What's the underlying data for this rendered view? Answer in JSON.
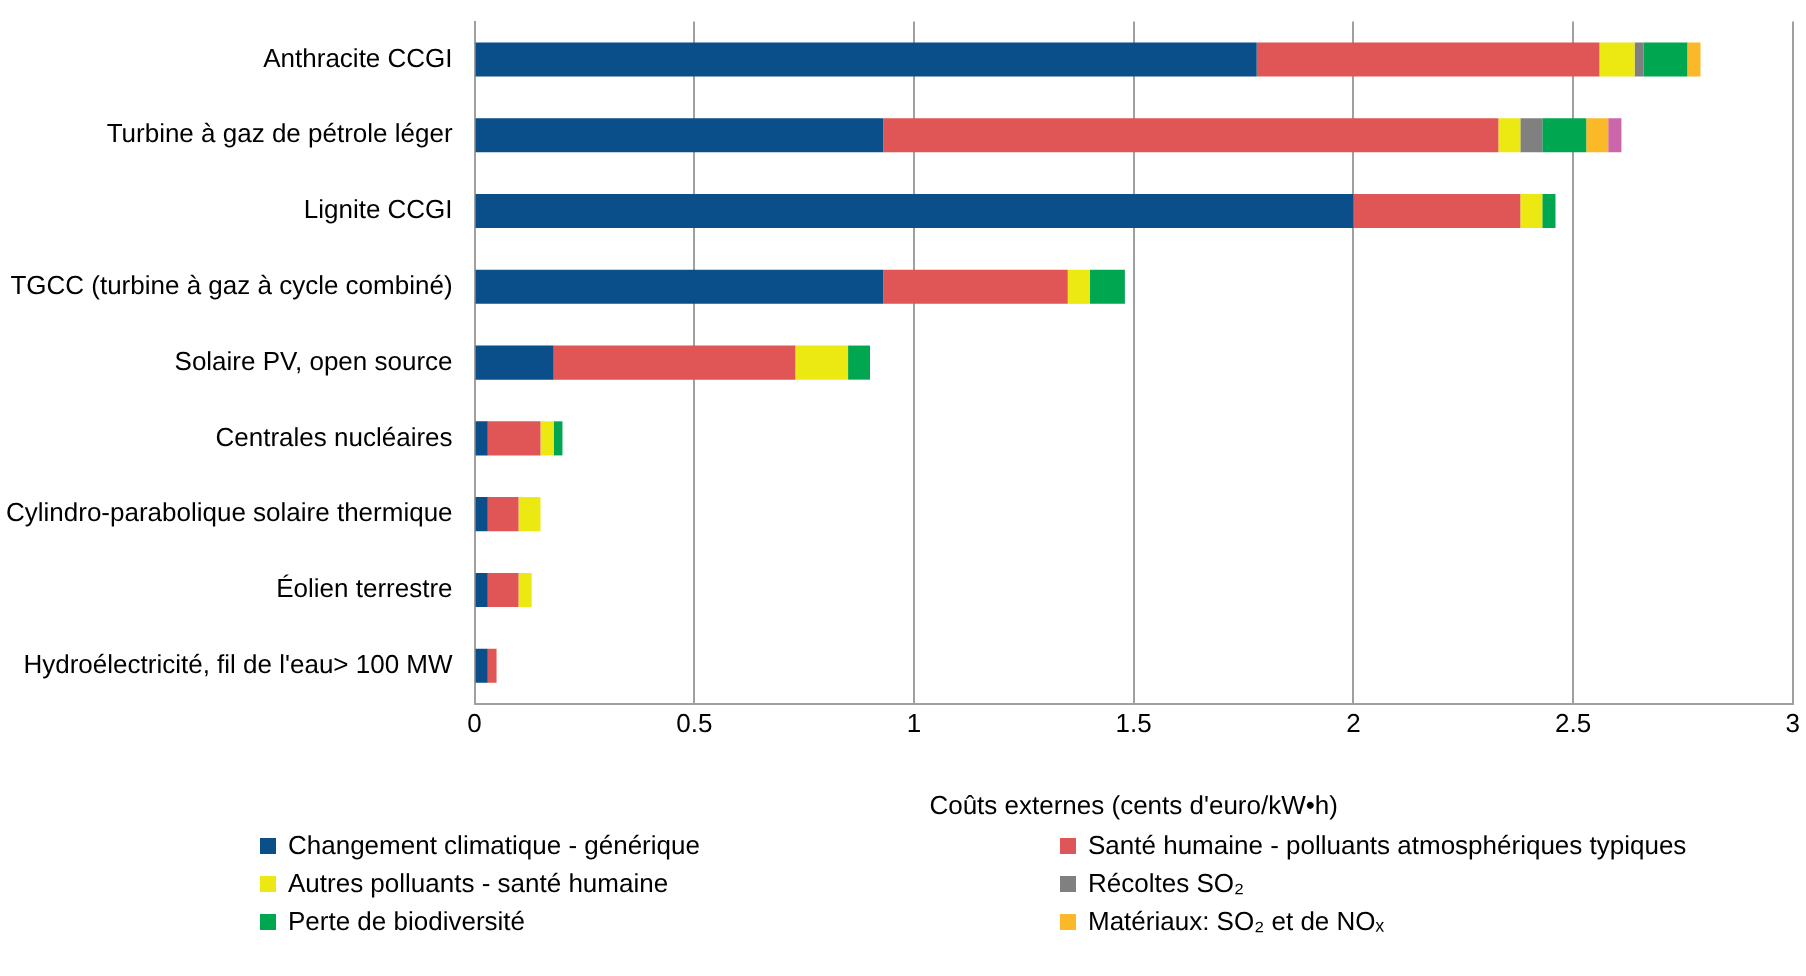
{
  "chart_data": {
    "type": "bar",
    "orientation": "horizontal",
    "stacked": true,
    "xlabel": "Coûts externes (cents d'euro/kW•h)",
    "categories": [
      "Anthracite CCGI",
      "Turbine à gaz de pétrole léger",
      "Lignite CCGI",
      "TGCC (turbine à gaz à cycle combiné)",
      "Solaire PV, open source",
      "Centrales nucléaires",
      "Cylindro-parabolique solaire thermique",
      "Éolien terrestre",
      "Hydroélectricité, fil de l'eau> 100 MW"
    ],
    "series": [
      {
        "name": "Changement climatique - générique",
        "color": "#0a4f8a",
        "values": [
          1.78,
          0.93,
          2.0,
          0.93,
          0.18,
          0.03,
          0.03,
          0.03,
          0.03
        ]
      },
      {
        "name": "Santé humaine - polluants atmosphériques typiques",
        "color": "#e05555",
        "values": [
          0.78,
          1.4,
          0.38,
          0.42,
          0.55,
          0.12,
          0.07,
          0.07,
          0.02
        ]
      },
      {
        "name": "Autres polluants - santé humaine",
        "color": "#ece812",
        "values": [
          0.08,
          0.05,
          0.05,
          0.05,
          0.12,
          0.03,
          0.05,
          0.03,
          0
        ]
      },
      {
        "name": "Récoltes SO₂",
        "color": "#808080",
        "values": [
          0.02,
          0.05,
          0,
          0,
          0,
          0,
          0,
          0,
          0
        ]
      },
      {
        "name": "Perte de biodiversité",
        "color": "#00a650",
        "values": [
          0.1,
          0.1,
          0.03,
          0.08,
          0.05,
          0.02,
          0,
          0,
          0
        ]
      },
      {
        "name": "Matériaux: SO₂ et de NOₓ",
        "color": "#fbb829",
        "values": [
          0.03,
          0.05,
          0,
          0,
          0,
          0,
          0,
          0,
          0
        ]
      },
      {
        "color": "#cc66aa",
        "values": [
          0,
          0.03,
          0,
          0,
          0,
          0,
          0,
          0,
          0
        ]
      }
    ],
    "xlim": [
      0,
      3
    ],
    "xticks": [
      0,
      0.5,
      1,
      1.5,
      2,
      2.5,
      3
    ],
    "grid": "x",
    "legend": "bottom"
  }
}
